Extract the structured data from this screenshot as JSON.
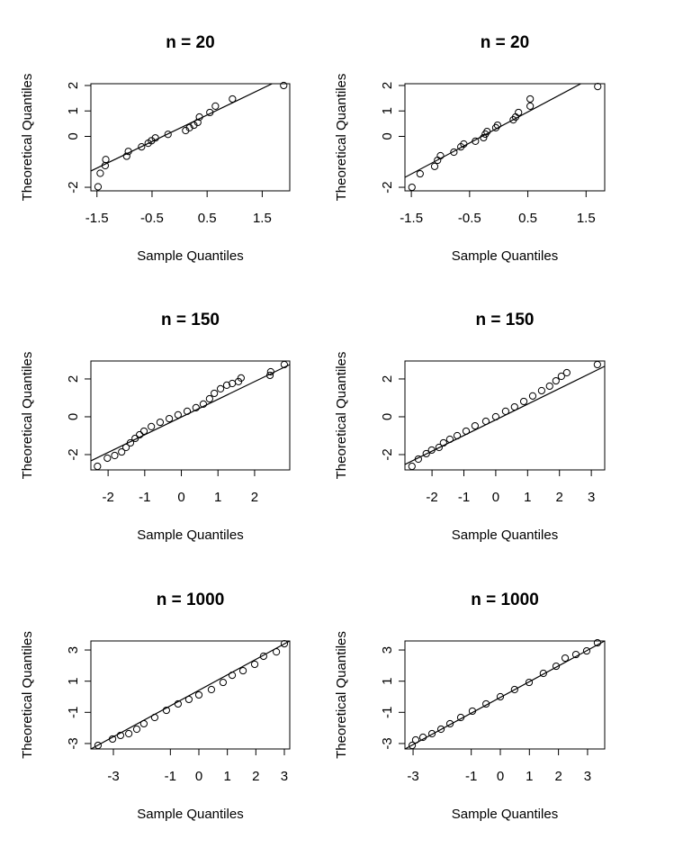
{
  "chart_data": [
    {
      "type": "scatter",
      "title": "n = 20",
      "x_label": "Sample Quantiles",
      "y_label": "Theoretical Quantiles",
      "color": "#000000",
      "xlim": [
        -1.61,
        2.0
      ],
      "ylim": [
        -2.14,
        2.07
      ],
      "xticks": [
        -1.5,
        -0.5,
        0.5,
        1.5
      ],
      "yticks": [
        -2,
        0,
        1,
        2
      ],
      "x": [
        -1.48,
        -1.44,
        -1.35,
        -1.34,
        -0.96,
        -0.93,
        -0.69,
        -0.57,
        -0.51,
        -0.44,
        -0.21,
        0.11,
        0.18,
        0.26,
        0.33,
        0.36,
        0.55,
        0.65,
        0.96,
        1.89
      ],
      "values": [
        -1.98,
        -1.45,
        -1.15,
        -0.91,
        -0.78,
        -0.59,
        -0.41,
        -0.27,
        -0.17,
        -0.06,
        0.08,
        0.23,
        0.34,
        0.44,
        0.55,
        0.76,
        0.94,
        1.19,
        1.47,
        2.0
      ],
      "reference_line": {
        "x": [
          -1.61,
          1.68
        ],
        "values": [
          -1.36,
          2.07
        ]
      }
    },
    {
      "type": "scatter",
      "title": "n = 20",
      "x_label": "Sample Quantiles",
      "y_label": "Theoretical Quantiles",
      "color": "#000000",
      "xlim": [
        -1.61,
        1.82
      ],
      "ylim": [
        -2.14,
        2.07
      ],
      "xticks": [
        -1.5,
        -0.5,
        0.5,
        1.5
      ],
      "yticks": [
        -2,
        0,
        1,
        2
      ],
      "x": [
        -1.49,
        -1.35,
        -1.1,
        -1.05,
        -1.0,
        -0.77,
        -0.65,
        -0.6,
        -0.4,
        -0.26,
        -0.23,
        -0.2,
        -0.05,
        -0.02,
        0.25,
        0.29,
        0.34,
        0.54,
        0.54,
        1.7
      ],
      "values": [
        -2.0,
        -1.47,
        -1.18,
        -0.94,
        -0.76,
        -0.62,
        -0.41,
        -0.3,
        -0.19,
        -0.05,
        0.09,
        0.19,
        0.34,
        0.44,
        0.65,
        0.76,
        0.94,
        1.19,
        1.47,
        1.96
      ],
      "reference_line": {
        "x": [
          -1.61,
          1.41
        ],
        "values": [
          -1.61,
          2.07
        ]
      }
    },
    {
      "type": "scatter",
      "title": "n = 150",
      "x_label": "Sample Quantiles",
      "y_label": "Theoretical Quantiles",
      "color": "#000000",
      "xlim": [
        -2.47,
        2.96
      ],
      "ylim": [
        -2.81,
        2.95
      ],
      "xticks": [
        -2,
        -1,
        0,
        1,
        2
      ],
      "yticks": [
        -2,
        0,
        2
      ],
      "x": [
        -2.29,
        -2.02,
        -1.82,
        -1.63,
        -1.51,
        -1.39,
        -1.26,
        -1.14,
        -1.02,
        -0.82,
        -0.58,
        -0.33,
        -0.09,
        0.16,
        0.4,
        0.6,
        0.77,
        0.9,
        1.07,
        1.24,
        1.39,
        1.56,
        1.63,
        2.42,
        2.44,
        2.81
      ],
      "values": [
        -2.62,
        -2.19,
        -2.05,
        -1.86,
        -1.62,
        -1.38,
        -1.14,
        -0.95,
        -0.76,
        -0.52,
        -0.29,
        -0.1,
        0.1,
        0.29,
        0.48,
        0.67,
        0.95,
        1.24,
        1.48,
        1.67,
        1.76,
        1.86,
        2.05,
        2.19,
        2.38,
        2.76
      ],
      "reference_line": {
        "x": [
          -2.47,
          2.96
        ],
        "values": [
          -2.33,
          2.76
        ]
      }
    },
    {
      "type": "scatter",
      "title": "n = 150",
      "x_label": "Sample Quantiles",
      "y_label": "Theoretical Quantiles",
      "color": "#000000",
      "xlim": [
        -2.85,
        3.42
      ],
      "ylim": [
        -2.81,
        2.95
      ],
      "xticks": [
        -2,
        -1,
        0,
        1,
        2,
        3
      ],
      "yticks": [
        -2,
        0,
        2
      ],
      "x": [
        -2.63,
        -2.43,
        -2.18,
        -2.01,
        -1.78,
        -1.64,
        -1.44,
        -1.21,
        -0.93,
        -0.65,
        -0.31,
        0,
        0.31,
        0.59,
        0.88,
        1.16,
        1.44,
        1.69,
        1.89,
        2.06,
        2.23,
        3.19
      ],
      "values": [
        -2.62,
        -2.24,
        -1.95,
        -1.76,
        -1.62,
        -1.38,
        -1.19,
        -1.0,
        -0.76,
        -0.48,
        -0.24,
        0,
        0.29,
        0.52,
        0.81,
        1.1,
        1.38,
        1.62,
        1.9,
        2.14,
        2.33,
        2.76
      ],
      "reference_line": {
        "x": [
          -2.85,
          3.42
        ],
        "values": [
          -2.52,
          2.67
        ]
      }
    },
    {
      "type": "scatter",
      "title": "n = 1000",
      "x_label": "Sample Quantiles",
      "y_label": "Theoretical Quantiles",
      "color": "#000000",
      "xlim": [
        -3.79,
        3.19
      ],
      "ylim": [
        -3.35,
        3.58
      ],
      "xticks": [
        -3,
        -1,
        0,
        1,
        2,
        3
      ],
      "yticks": [
        -3,
        -1,
        1,
        3
      ],
      "x": [
        -3.54,
        -3.03,
        -2.75,
        -2.46,
        -2.18,
        -1.93,
        -1.55,
        -1.14,
        -0.73,
        -0.35,
        0,
        0.44,
        0.85,
        1.17,
        1.55,
        1.96,
        2.27,
        2.72,
        3.0
      ],
      "values": [
        -3.12,
        -2.71,
        -2.48,
        -2.37,
        -2.08,
        -1.73,
        -1.33,
        -0.87,
        -0.46,
        -0.17,
        0.12,
        0.46,
        0.92,
        1.38,
        1.67,
        2.08,
        2.6,
        2.88,
        3.4
      ],
      "reference_line": {
        "x": [
          -3.79,
          3.19
        ],
        "values": [
          -3.35,
          3.58
        ]
      }
    },
    {
      "type": "scatter",
      "title": "n = 1000",
      "x_label": "Sample Quantiles",
      "y_label": "Theoretical Quantiles",
      "color": "#000000",
      "xlim": [
        -3.28,
        3.59
      ],
      "ylim": [
        -3.35,
        3.58
      ],
      "xticks": [
        -3,
        -1,
        0,
        1,
        2,
        3
      ],
      "yticks": [
        -3,
        -1,
        1,
        3
      ],
      "x": [
        -3.03,
        -2.91,
        -2.66,
        -2.35,
        -2.04,
        -1.73,
        -1.36,
        -0.96,
        -0.49,
        0,
        0.49,
        0.99,
        1.48,
        1.92,
        2.23,
        2.6,
        2.97,
        3.34
      ],
      "values": [
        -3.12,
        -2.77,
        -2.6,
        -2.37,
        -2.08,
        -1.73,
        -1.33,
        -0.92,
        -0.46,
        0,
        0.46,
        0.92,
        1.5,
        1.96,
        2.48,
        2.71,
        2.94,
        3.46
      ],
      "reference_line": {
        "x": [
          -3.28,
          3.59
        ],
        "values": [
          -3.35,
          3.58
        ]
      }
    }
  ]
}
